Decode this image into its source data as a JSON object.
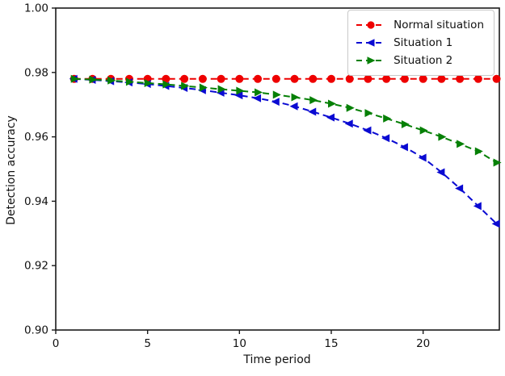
{
  "figure": {
    "background": "#ffffff",
    "text_color": "#111111",
    "spine_color": "#1a1a1a"
  },
  "chart_data": {
    "type": "line",
    "title": "",
    "xlabel": "Time period",
    "ylabel": "Detection accuracy",
    "xlim": [
      0,
      24.15
    ],
    "ylim": [
      0.9,
      1.0
    ],
    "x_ticks": [
      0,
      5,
      10,
      15,
      20
    ],
    "y_ticks": [
      0.9,
      0.92,
      0.94,
      0.96,
      0.98,
      1.0
    ],
    "grid": false,
    "legend_position": "upper right",
    "x": [
      1,
      2,
      3,
      4,
      5,
      6,
      7,
      8,
      9,
      10,
      11,
      12,
      13,
      14,
      15,
      16,
      17,
      18,
      19,
      20,
      21,
      22,
      23,
      24
    ],
    "series": [
      {
        "name": "Normal situation",
        "color": "#ee0000",
        "marker": "circle",
        "linestyle": "dashed",
        "values": [
          0.978,
          0.978,
          0.978,
          0.978,
          0.978,
          0.978,
          0.978,
          0.978,
          0.978,
          0.978,
          0.978,
          0.978,
          0.978,
          0.978,
          0.978,
          0.978,
          0.978,
          0.978,
          0.978,
          0.978,
          0.978,
          0.978,
          0.978,
          0.978
        ]
      },
      {
        "name": "Situation 1",
        "color": "#0a0ad2",
        "marker": "triangle-left",
        "linestyle": "dashed",
        "values": [
          0.978,
          0.9777,
          0.9773,
          0.9769,
          0.9764,
          0.9758,
          0.9752,
          0.9745,
          0.9737,
          0.9729,
          0.972,
          0.9709,
          0.9695,
          0.9678,
          0.966,
          0.9641,
          0.962,
          0.9596,
          0.9568,
          0.9535,
          0.949,
          0.944,
          0.9385,
          0.933
        ]
      },
      {
        "name": "Situation 2",
        "color": "#068006",
        "marker": "triangle-right",
        "linestyle": "dashed",
        "values": [
          0.978,
          0.9778,
          0.9775,
          0.9771,
          0.9767,
          0.9763,
          0.9758,
          0.9753,
          0.9748,
          0.9743,
          0.9738,
          0.9731,
          0.9723,
          0.9714,
          0.9703,
          0.969,
          0.9674,
          0.9657,
          0.9639,
          0.962,
          0.96,
          0.9578,
          0.9555,
          0.952
        ]
      }
    ]
  }
}
